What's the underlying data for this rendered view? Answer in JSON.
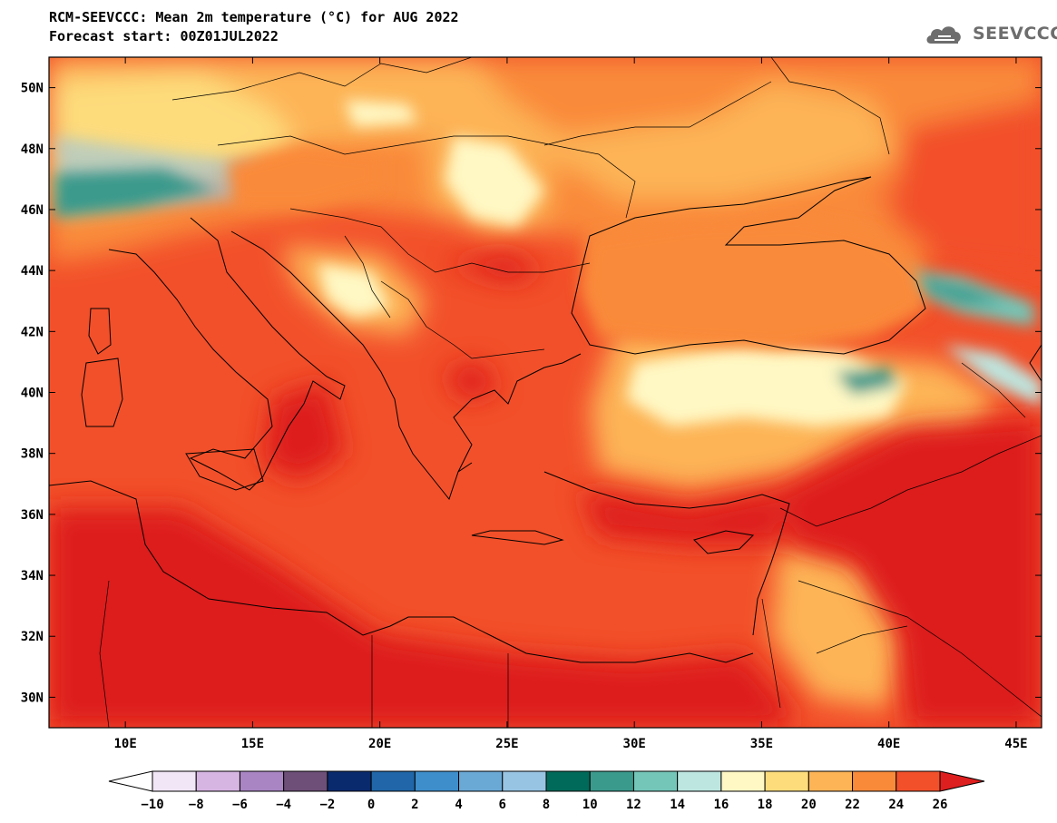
{
  "header": {
    "title": "RCM-SEEVCCC: Mean 2m temperature (°C) for AUG 2022",
    "subtitle": "Forecast start: 00Z01JUL2022"
  },
  "logo": {
    "text": "SEEVCCC",
    "icon": "cloud-icon",
    "color": "#6d6d6d"
  },
  "map": {
    "lon_range": [
      7,
      46
    ],
    "lat_range": [
      29,
      51
    ],
    "lat_ticks": [
      {
        "value": 50,
        "label": "50N"
      },
      {
        "value": 48,
        "label": "48N"
      },
      {
        "value": 46,
        "label": "46N"
      },
      {
        "value": 44,
        "label": "44N"
      },
      {
        "value": 42,
        "label": "42N"
      },
      {
        "value": 40,
        "label": "40N"
      },
      {
        "value": 38,
        "label": "38N"
      },
      {
        "value": 36,
        "label": "36N"
      },
      {
        "value": 34,
        "label": "34N"
      },
      {
        "value": 32,
        "label": "32N"
      },
      {
        "value": 30,
        "label": "30N"
      }
    ],
    "lon_ticks": [
      {
        "value": 10,
        "label": "10E"
      },
      {
        "value": 15,
        "label": "15E"
      },
      {
        "value": 20,
        "label": "20E"
      },
      {
        "value": 25,
        "label": "25E"
      },
      {
        "value": 30,
        "label": "30E"
      },
      {
        "value": 35,
        "label": "35E"
      },
      {
        "value": 40,
        "label": "40E"
      },
      {
        "value": 45,
        "label": "45E"
      }
    ]
  },
  "colorbar": {
    "labels": [
      "−10",
      "−8",
      "−6",
      "−4",
      "−2",
      "0",
      "2",
      "4",
      "6",
      "8",
      "10",
      "12",
      "14",
      "16",
      "18",
      "20",
      "22",
      "24",
      "26"
    ],
    "colors": [
      "#f0e6f5",
      "#d6b5e3",
      "#a985c4",
      "#6e4f78",
      "#0a2a6e",
      "#2066a8",
      "#3e8ecb",
      "#6aa9d6",
      "#98c4e3",
      "#006a5a",
      "#3a9a8c",
      "#73c6b8",
      "#bde6e0",
      "#fff8c4",
      "#fddc7b",
      "#fdb457",
      "#f98a3a",
      "#f2502a"
    ],
    "under_color": "#ffffff",
    "over_color": "#dd1f1f"
  }
}
